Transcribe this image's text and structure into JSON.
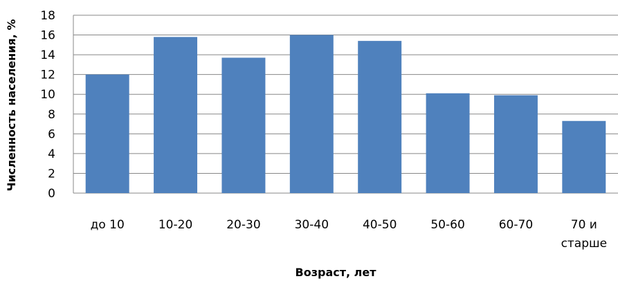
{
  "chart_data": {
    "type": "bar",
    "categories": [
      [
        "до 10"
      ],
      [
        "10-20"
      ],
      [
        "20-30"
      ],
      [
        "30-40"
      ],
      [
        "40-50"
      ],
      [
        "50-60"
      ],
      [
        "60-70"
      ],
      [
        "70 и",
        "старше"
      ]
    ],
    "values": [
      12.0,
      15.8,
      13.7,
      16.0,
      15.4,
      10.1,
      9.9,
      7.3
    ],
    "title": "",
    "xlabel": "Возраст, лет",
    "ylabel": "Численность населения, %",
    "ylim": [
      0,
      18
    ],
    "yticks": [
      0,
      2,
      4,
      6,
      8,
      10,
      12,
      14,
      16,
      18
    ],
    "grid": true,
    "bar_color": "#4F81BD",
    "grid_color": "#878787"
  }
}
